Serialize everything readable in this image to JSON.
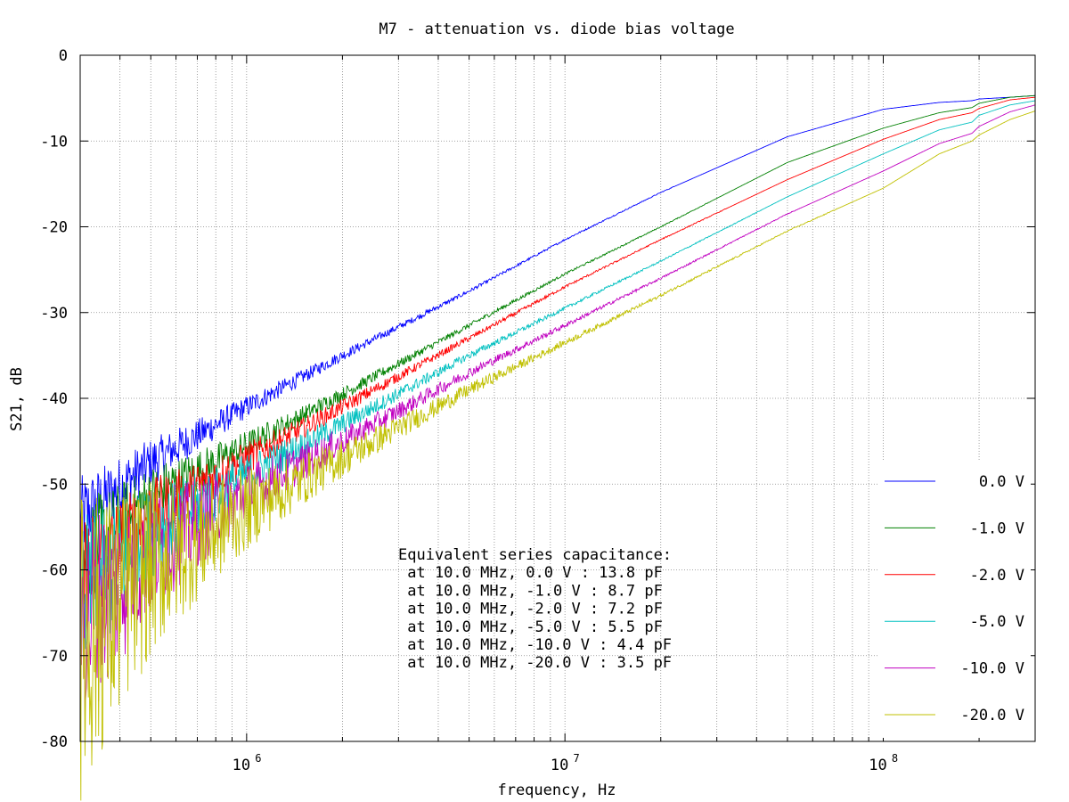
{
  "chart_data": {
    "type": "line",
    "title": "M7 - attenuation vs. diode bias voltage",
    "xlabel": "frequency, Hz",
    "ylabel": "S21, dB",
    "xscale": "log",
    "xlim": [
      300000,
      300000000
    ],
    "ylim": [
      -80,
      0
    ],
    "grid": true,
    "legend_position": "bottom-right",
    "x_ticks": [
      {
        "base": "10",
        "exp": "6"
      },
      {
        "base": "10",
        "exp": "7"
      },
      {
        "base": "10",
        "exp": "8"
      }
    ],
    "y_ticks": [
      "0",
      "-10",
      "-20",
      "-30",
      "-40",
      "-50",
      "-60",
      "-70",
      "-80"
    ],
    "x": [
      300000,
      500000,
      1000000,
      2000000,
      5000000,
      10000000,
      20000000,
      50000000,
      100000000,
      150000000,
      190000000,
      200000000,
      250000000,
      300000000
    ],
    "series": [
      {
        "name": "0.0 V",
        "color": "#0000ff",
        "noise": 0.6,
        "values": [
          -54,
          -47.5,
          -41,
          -35,
          -27.5,
          -21.5,
          -16,
          -9.5,
          -6.3,
          -5.5,
          -5.3,
          -5.1,
          -4.9,
          -4.7
        ]
      },
      {
        "name": "-1.0 V",
        "color": "#008000",
        "noise": 0.8,
        "values": [
          -58.5,
          -51.5,
          -45.5,
          -39.5,
          -31.5,
          -25.5,
          -20,
          -12.5,
          -8.5,
          -6.7,
          -6.1,
          -5.6,
          -4.9,
          -4.7
        ]
      },
      {
        "name": "-2.0 V",
        "color": "#ff0000",
        "noise": 0.9,
        "values": [
          -61,
          -53.5,
          -47,
          -41,
          -33,
          -27,
          -21.5,
          -14.5,
          -9.8,
          -7.5,
          -6.7,
          -6.2,
          -5.2,
          -4.9
        ]
      },
      {
        "name": "-5.0 V",
        "color": "#00c0c0",
        "noise": 1.2,
        "values": [
          -63.5,
          -56,
          -49,
          -43,
          -35,
          -29.5,
          -24,
          -16.5,
          -11.5,
          -8.7,
          -7.8,
          -7.0,
          -5.8,
          -5.3
        ]
      },
      {
        "name": "-10.0 V",
        "color": "#c000c0",
        "noise": 1.6,
        "values": [
          -66,
          -58,
          -51,
          -45,
          -37,
          -31.5,
          -26,
          -18.5,
          -13.5,
          -10.3,
          -9.1,
          -8.3,
          -6.6,
          -5.8
        ]
      },
      {
        "name": "-20.0 V",
        "color": "#c0c000",
        "noise": 2.2,
        "values": [
          -69,
          -60,
          -53,
          -47,
          -39,
          -33.5,
          -28,
          -20.5,
          -15.5,
          -11.5,
          -10,
          -9.3,
          -7.5,
          -6.5
        ]
      }
    ],
    "annotations": [
      "Equivalent series capacitance:",
      " at 10.0 MHz, 0.0 V : 13.8 pF",
      " at 10.0 MHz, -1.0 V : 8.7 pF",
      " at 10.0 MHz, -2.0 V : 7.2 pF",
      " at 10.0 MHz, -5.0 V : 5.5 pF",
      " at 10.0 MHz, -10.0 V : 4.4 pF",
      " at 10.0 MHz, -20.0 V : 3.5 pF"
    ]
  }
}
